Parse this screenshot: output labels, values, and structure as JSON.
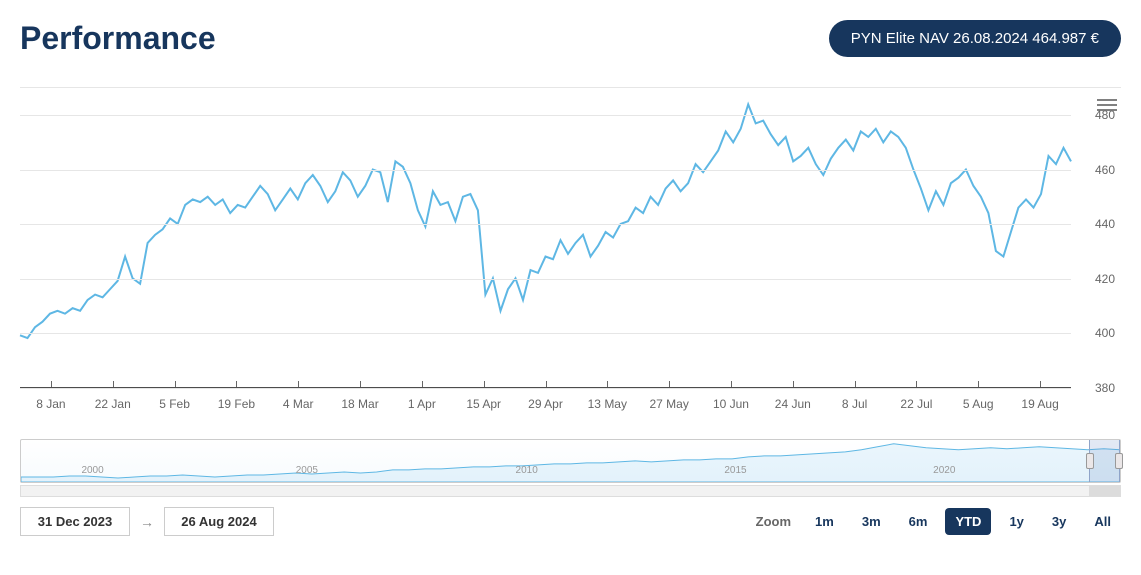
{
  "header": {
    "title": "Performance",
    "nav_badge": "PYN Elite NAV 26.08.2024 464.987 €"
  },
  "chart": {
    "type": "line",
    "line_color": "#5eb7e4",
    "line_width": 2,
    "background_color": "#ffffff",
    "grid_color": "#e6e6e6",
    "axis_color": "#4d4d4d",
    "label_color": "#666666",
    "label_fontsize": 12,
    "ylim": [
      380,
      490
    ],
    "yticks": [
      380,
      400,
      420,
      440,
      460,
      480
    ],
    "xticks": [
      "8 Jan",
      "22 Jan",
      "5 Feb",
      "19 Feb",
      "4 Mar",
      "18 Mar",
      "1 Apr",
      "15 Apr",
      "29 Apr",
      "13 May",
      "27 May",
      "10 Jun",
      "24 Jun",
      "8 Jul",
      "22 Jul",
      "5 Aug",
      "19 Aug"
    ],
    "values": [
      399,
      398,
      402,
      404,
      407,
      408,
      407,
      409,
      408,
      412,
      414,
      413,
      416,
      419,
      428,
      420,
      418,
      433,
      436,
      438,
      442,
      440,
      447,
      449,
      448,
      450,
      447,
      449,
      444,
      447,
      446,
      450,
      454,
      451,
      445,
      449,
      453,
      449,
      455,
      458,
      454,
      448,
      452,
      459,
      456,
      450,
      454,
      460,
      459,
      448,
      463,
      461,
      455,
      445,
      439,
      452,
      447,
      448,
      441,
      450,
      451,
      445,
      414,
      420,
      408,
      416,
      420,
      412,
      423,
      422,
      428,
      427,
      434,
      429,
      433,
      436,
      428,
      432,
      437,
      435,
      440,
      441,
      446,
      444,
      450,
      447,
      453,
      456,
      452,
      455,
      462,
      459,
      463,
      467,
      474,
      470,
      475,
      484,
      477,
      478,
      473,
      469,
      472,
      463,
      465,
      468,
      462,
      458,
      464,
      468,
      471,
      467,
      474,
      472,
      475,
      470,
      474,
      472,
      468,
      460,
      453,
      445,
      452,
      447,
      455,
      457,
      460,
      454,
      450,
      444,
      430,
      428,
      437,
      446,
      449,
      446,
      451,
      465,
      462,
      468,
      463
    ]
  },
  "navigator": {
    "line_color": "#5eb7e4",
    "fill_color": "rgba(94,183,228,0.12)",
    "year_labels": [
      "2000",
      "2005",
      "2010",
      "2015",
      "2020"
    ],
    "year_positions_pct": [
      5.5,
      25,
      45,
      64,
      83
    ],
    "selection_start_pct": 97.2,
    "selection_end_pct": 100,
    "values": [
      5,
      5,
      5,
      6,
      6,
      5,
      4,
      5,
      6,
      6,
      7,
      6,
      5,
      6,
      7,
      7,
      8,
      9,
      8,
      9,
      10,
      9,
      10,
      12,
      12,
      13,
      13,
      14,
      15,
      15,
      16,
      16,
      17,
      18,
      18,
      19,
      19,
      20,
      21,
      20,
      21,
      22,
      22,
      23,
      23,
      25,
      26,
      26,
      27,
      28,
      29,
      30,
      32,
      35,
      38,
      36,
      34,
      33,
      32,
      33,
      34,
      33,
      34,
      35,
      34,
      33,
      32,
      33,
      32
    ]
  },
  "date_range": {
    "from": "31 Dec 2023",
    "to": "26 Aug 2024"
  },
  "zoom": {
    "label": "Zoom",
    "active": "YTD",
    "options": [
      "1m",
      "3m",
      "6m",
      "YTD",
      "1y",
      "3y",
      "All"
    ]
  },
  "colors": {
    "brand": "#17365d",
    "accent": "#5eb7e4"
  }
}
